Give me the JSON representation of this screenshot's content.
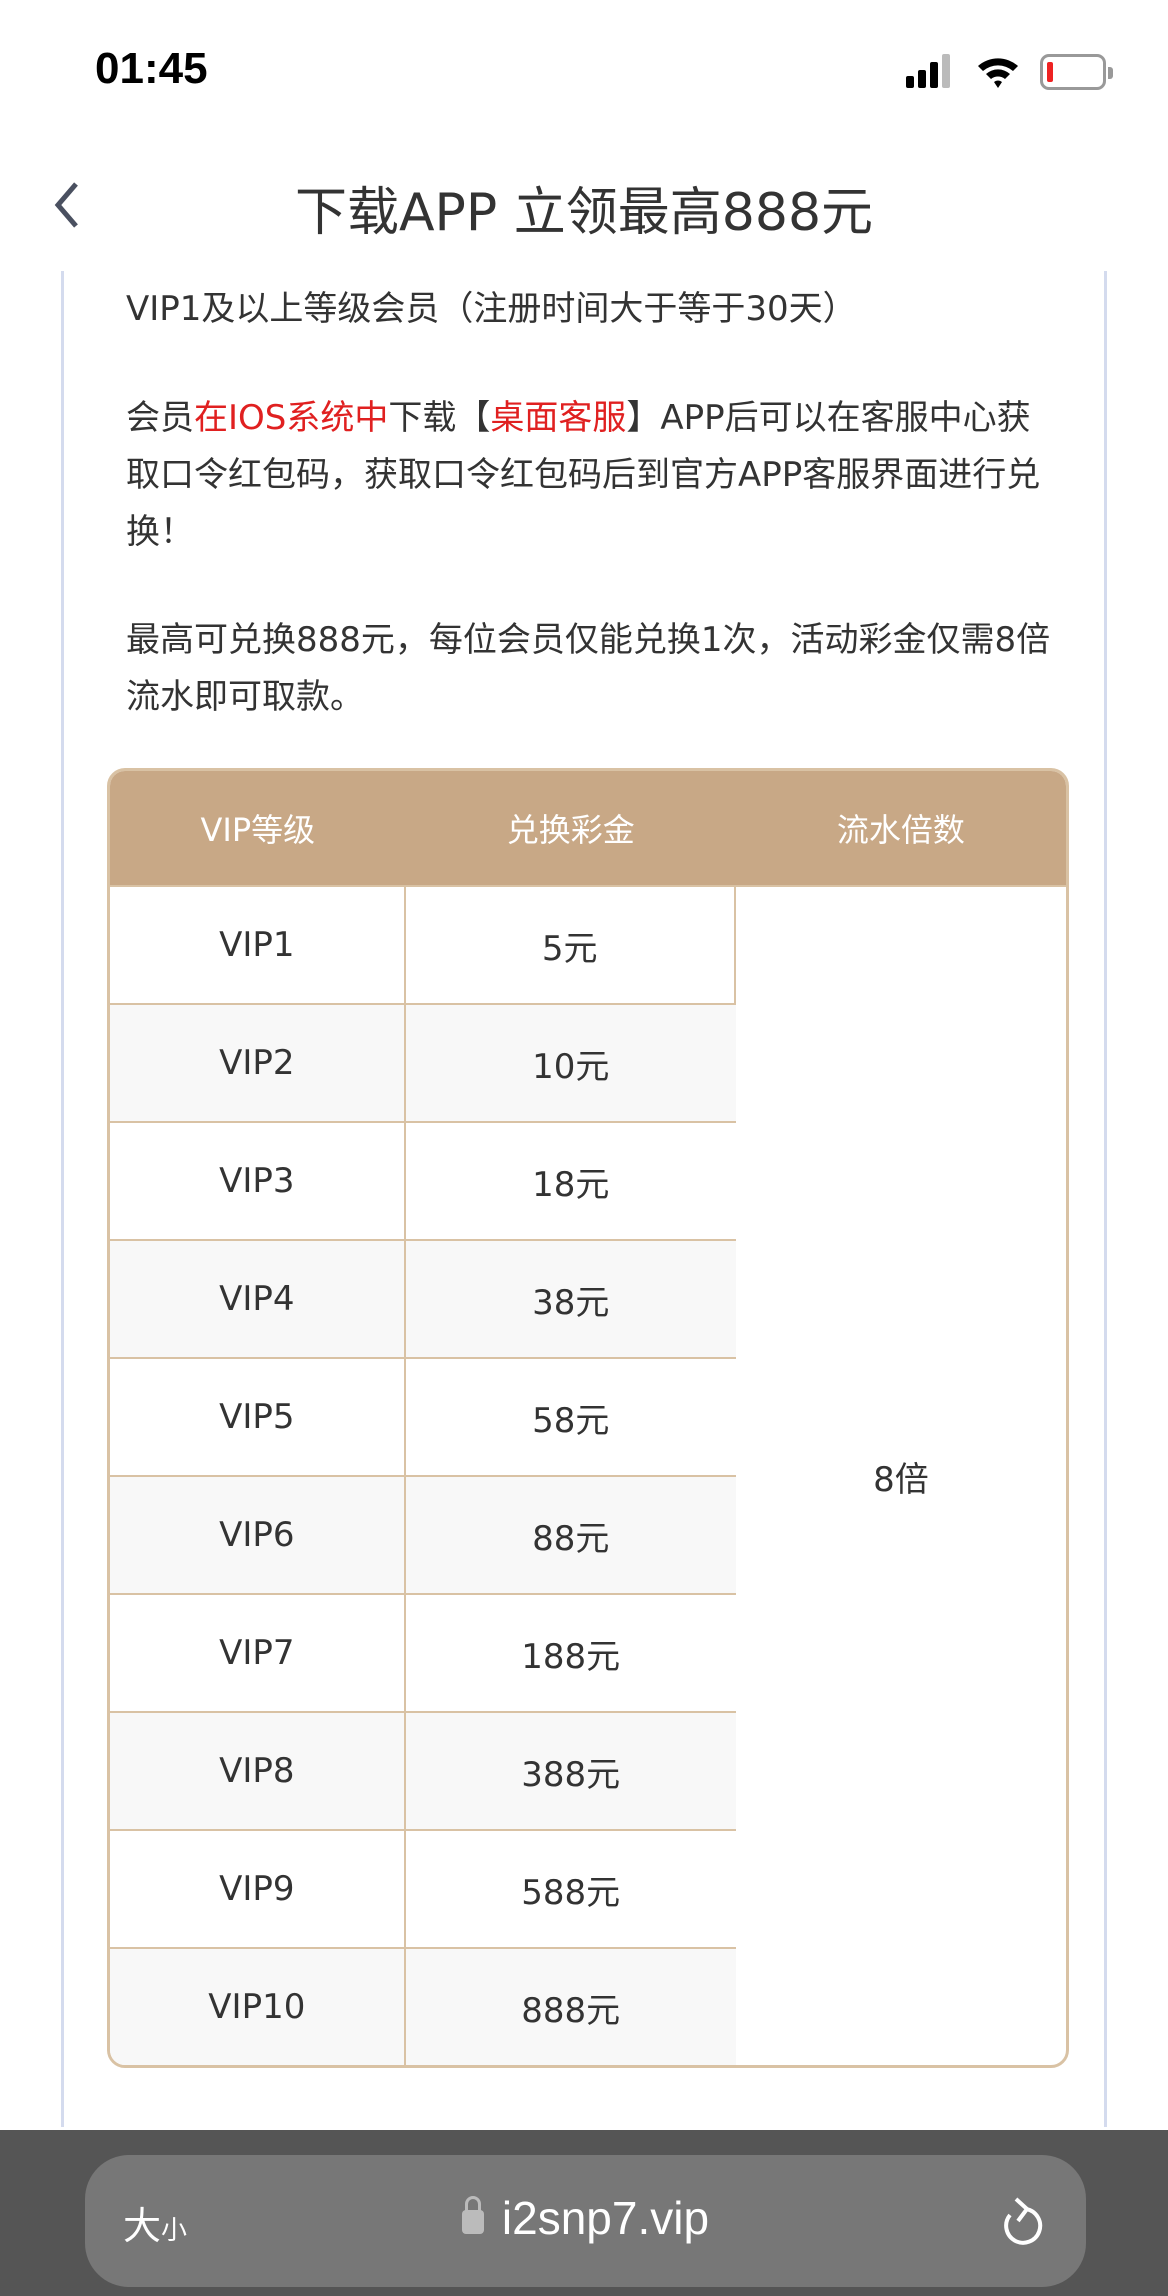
{
  "status_bar": {
    "time": "01:45",
    "battery_color": "#e02020"
  },
  "nav": {
    "title": "下载APP 立领最高888元"
  },
  "content": {
    "line1": "VIP1及以上等级会员（注册时间大于等于30天）",
    "para2": [
      {
        "t": "会员",
        "red": false
      },
      {
        "t": "在IOS系统中",
        "red": true
      },
      {
        "t": "下载【",
        "red": false
      },
      {
        "t": "桌面客服",
        "red": true
      },
      {
        "t": "】APP后可以在客服中心获取口令红包码，获取口令红包码后到官方APP客服界面进行兑换！",
        "red": false
      }
    ],
    "para3": "最高可兑换888元，每位会员仅能兑换1次，活动彩金仅需8倍流水即可取款。"
  },
  "table": {
    "headers": [
      "VIP等级",
      "兑换彩金",
      "流水倍数"
    ],
    "rows": [
      [
        "VIP1",
        "5元"
      ],
      [
        "VIP2",
        "10元"
      ],
      [
        "VIP3",
        "18元"
      ],
      [
        "VIP4",
        "38元"
      ],
      [
        "VIP5",
        "58元"
      ],
      [
        "VIP6",
        "88元"
      ],
      [
        "VIP7",
        "188元"
      ],
      [
        "VIP8",
        "388元"
      ],
      [
        "VIP9",
        "588元"
      ],
      [
        "VIP10",
        "888元"
      ]
    ],
    "multiplier": "8倍",
    "header_color": "#c8a886"
  },
  "browser": {
    "text_size_big": "大",
    "text_size_small": "小",
    "url": "i2snp7.vip"
  }
}
